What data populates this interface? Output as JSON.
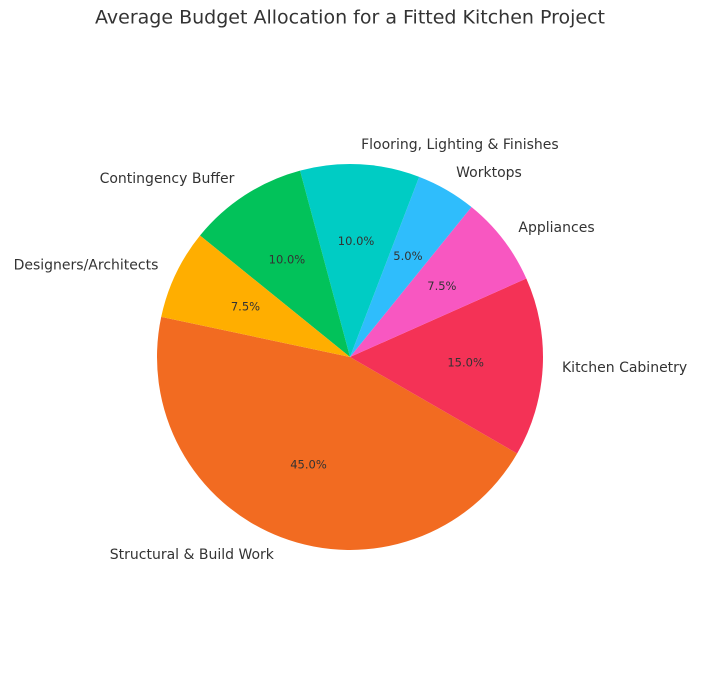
{
  "chart_data": {
    "type": "pie",
    "title": "Average Budget Allocation for a Fitted Kitchen Project",
    "categories": [
      "Structural & Build Work",
      "Kitchen Cabinetry",
      "Appliances",
      "Worktops",
      "Flooring, Lighting & Finishes",
      "Contingency Buffer",
      "Designers/Architects"
    ],
    "values": [
      45,
      15,
      7.5,
      5,
      10,
      10,
      7.5
    ],
    "value_labels": [
      "45.0%",
      "15.0%",
      "7.5%",
      "5.0%",
      "10.0%",
      "10.0%",
      "7.5%"
    ],
    "colors": [
      "#f26b21",
      "#f43256",
      "#f857c1",
      "#2fbdfc",
      "#00ccc4",
      "#02c25a",
      "#ffae00"
    ]
  }
}
